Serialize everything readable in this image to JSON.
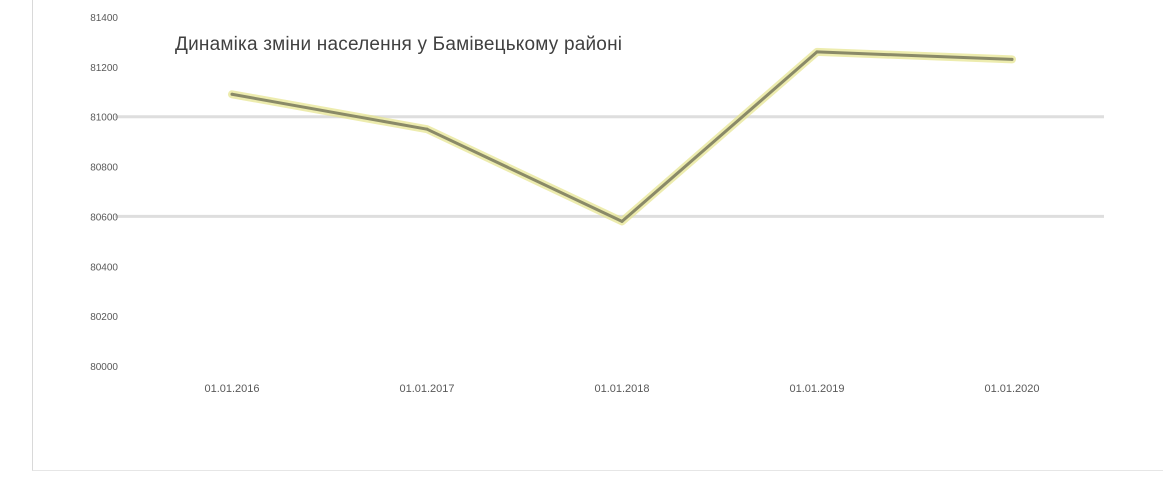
{
  "chart_data": {
    "type": "line",
    "title": "Динаміка зміни населення у Бамівецькому районі",
    "categories": [
      "01.01.2016",
      "01.01.2017",
      "01.01.2018",
      "01.01.2019",
      "01.01.2020"
    ],
    "y_ticks": [
      "81400",
      "81200",
      "81000",
      "80800",
      "80600",
      "80400",
      "80200",
      "80000"
    ],
    "ylim": [
      80000,
      81400
    ],
    "series": [
      {
        "values": [
          81090,
          80950,
          80580,
          81260,
          81230
        ]
      }
    ],
    "grid": "partial horizontal",
    "colors": {
      "line": "#8a8a68",
      "line_highlight": "#e6e48c",
      "grid": "#dedede",
      "text": "#404040"
    }
  }
}
